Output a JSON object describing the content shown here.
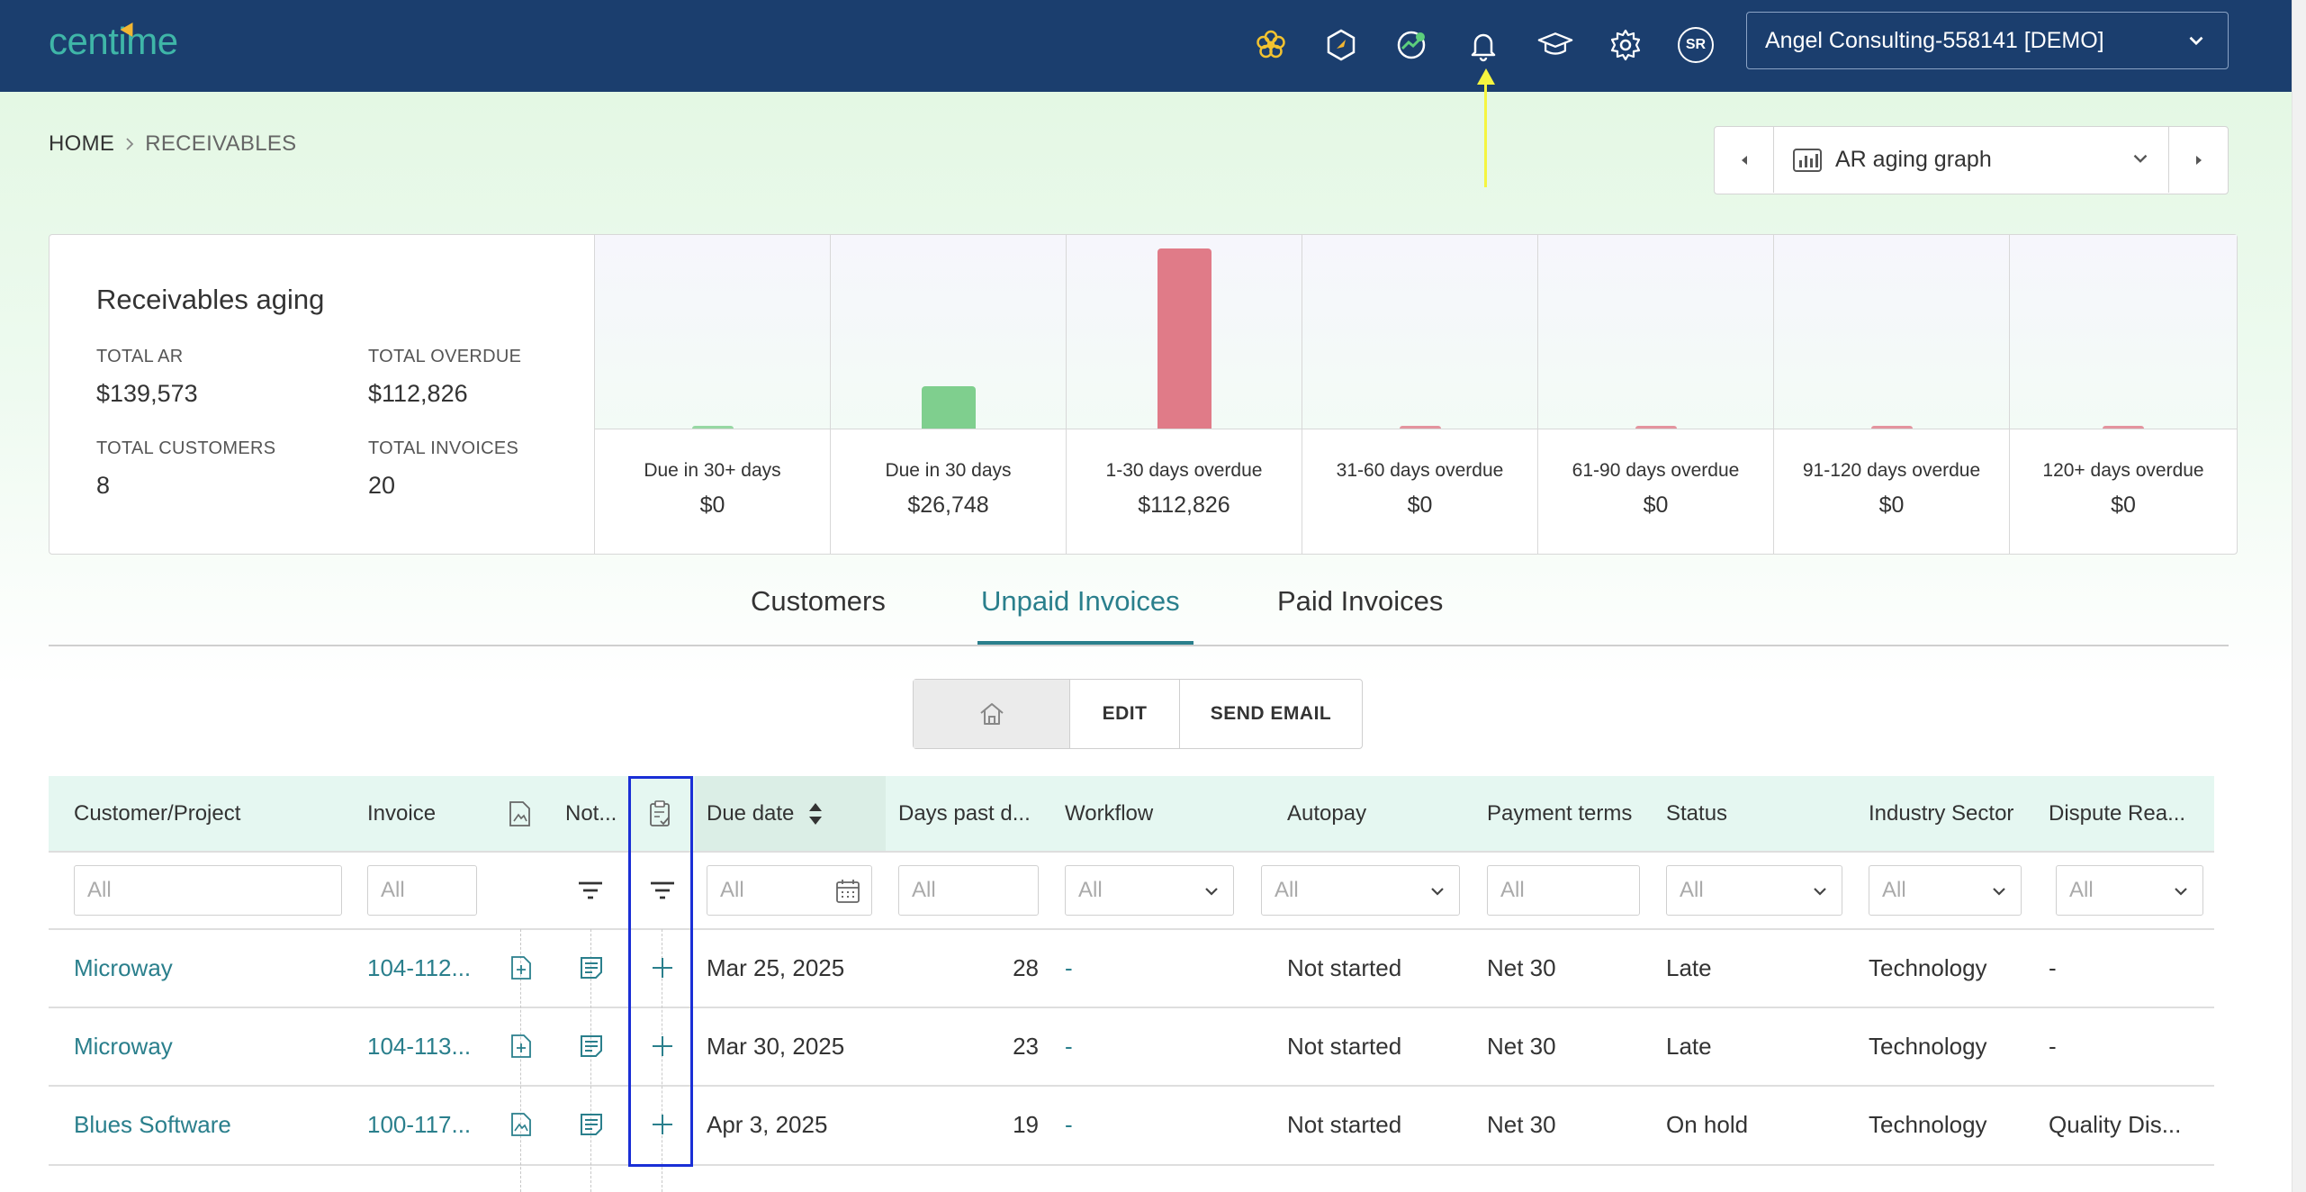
{
  "header": {
    "logo": "centime",
    "company": "Angel Consulting-558141 [DEMO]",
    "avatar_initials": "SR",
    "icons": [
      "flower-icon",
      "cube-icon",
      "cashflow-icon",
      "bell-icon",
      "graduation-cap-icon",
      "gear-icon"
    ]
  },
  "breadcrumb": {
    "home": "HOME",
    "current": "RECEIVABLES"
  },
  "view_selector": {
    "label": "AR aging graph"
  },
  "aging": {
    "title": "Receivables aging",
    "total_ar_label": "TOTAL AR",
    "total_ar": "$139,573",
    "total_overdue_label": "TOTAL OVERDUE",
    "total_overdue": "$112,826",
    "total_customers_label": "TOTAL CUSTOMERS",
    "total_customers": "8",
    "total_invoices_label": "TOTAL INVOICES",
    "total_invoices": "20",
    "buckets": [
      {
        "label": "Due in 30+ days",
        "value": "$0"
      },
      {
        "label": "Due in 30 days",
        "value": "$26,748"
      },
      {
        "label": "1-30 days overdue",
        "value": "$112,826"
      },
      {
        "label": "31-60 days overdue",
        "value": "$0"
      },
      {
        "label": "61-90 days overdue",
        "value": "$0"
      },
      {
        "label": "91-120 days overdue",
        "value": "$0"
      },
      {
        "label": "120+ days overdue",
        "value": "$0"
      }
    ]
  },
  "chart_data": {
    "type": "bar",
    "categories": [
      "Due in 30+ days",
      "Due in 30 days",
      "1-30 days overdue",
      "31-60 days overdue",
      "61-90 days overdue",
      "91-120 days overdue",
      "120+ days overdue"
    ],
    "values": [
      0,
      26748,
      112826,
      0,
      0,
      0,
      0
    ],
    "ylim": [
      0,
      112826
    ],
    "colors": [
      "#7fcf8e",
      "#7fcf8e",
      "#e07b88",
      "#e07b88",
      "#e07b88",
      "#e07b88",
      "#e07b88"
    ]
  },
  "tabs": [
    {
      "label": "Customers"
    },
    {
      "label": "Unpaid Invoices",
      "active": true
    },
    {
      "label": "Paid Invoices"
    }
  ],
  "toolbar": {
    "edit": "EDIT",
    "send_email": "SEND EMAIL"
  },
  "grid": {
    "columns": {
      "customer": "Customer/Project",
      "invoice": "Invoice",
      "notes": "Not...",
      "due_date": "Due date",
      "days_past": "Days past d...",
      "workflow": "Workflow",
      "autopay": "Autopay",
      "payment_terms": "Payment terms",
      "status": "Status",
      "industry": "Industry Sector",
      "dispute": "Dispute Rea..."
    },
    "filter_placeholder": "All",
    "rows": [
      {
        "customer": "Microway",
        "invoice": "104-112...",
        "due_date": "Mar 25, 2025",
        "days_past": "28",
        "workflow": "-",
        "autopay": "Not started",
        "terms": "Net 30",
        "status": "Late",
        "industry": "Technology",
        "dispute": "-"
      },
      {
        "customer": "Microway",
        "invoice": "104-113...",
        "due_date": "Mar 30, 2025",
        "days_past": "23",
        "workflow": "-",
        "autopay": "Not started",
        "terms": "Net 30",
        "status": "Late",
        "industry": "Technology",
        "dispute": "-"
      },
      {
        "customer": "Blues Software",
        "invoice": "100-117...",
        "due_date": "Apr 3, 2025",
        "days_past": "19",
        "workflow": "-",
        "autopay": "Not started",
        "terms": "Net 30",
        "status": "On hold",
        "industry": "Technology",
        "dispute": "Quality Dis..."
      }
    ]
  },
  "colors": {
    "header_bg": "#1b3e6e",
    "accent": "#2a7f8c",
    "highlight": "#1a2fd6",
    "annotation_arrow": "#f5f540"
  }
}
